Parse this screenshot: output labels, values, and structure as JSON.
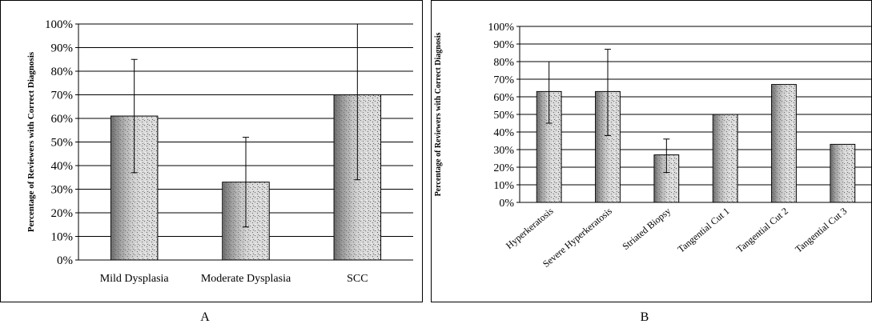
{
  "chart_data": [
    {
      "type": "bar",
      "panel_label": "A",
      "ylabel": "Percentage of Reviewers with Correct Diagnosis",
      "categories": [
        "Mild Dysplasia",
        "Moderate Dysplasia",
        "SCC"
      ],
      "values": [
        61,
        33,
        70
      ],
      "error_low": [
        37,
        14,
        34
      ],
      "error_high": [
        85,
        52,
        100
      ],
      "ylim": [
        0,
        100
      ],
      "yticks": [
        "0%",
        "10%",
        "20%",
        "30%",
        "40%",
        "50%",
        "60%",
        "70%",
        "80%",
        "90%",
        "100%"
      ],
      "grid": true,
      "legend": "none"
    },
    {
      "type": "bar",
      "panel_label": "B",
      "ylabel": "Percentage of Reviewers with Correct Diagnosis",
      "categories": [
        "Hyperkeratosis",
        "Severe Hyperkeratosis",
        "Striated Biopsy",
        "Tangential Cut 1",
        "Tangential Cut 2",
        "Tangential Cut 3"
      ],
      "values": [
        63,
        63,
        27,
        50,
        67,
        33
      ],
      "error_low": [
        45,
        38,
        17,
        null,
        null,
        null
      ],
      "error_high": [
        80,
        87,
        36,
        null,
        null,
        null
      ],
      "ylim": [
        0,
        100
      ],
      "yticks": [
        "0%",
        "10%",
        "20%",
        "30%",
        "40%",
        "50%",
        "60%",
        "70%",
        "80%",
        "90%",
        "100%"
      ],
      "grid": true,
      "legend": "none"
    }
  ],
  "colors": {
    "frame": "#000000",
    "grid": "#000000",
    "bar_fill": "#d9d9d9",
    "bar_stipple": "#555555"
  }
}
